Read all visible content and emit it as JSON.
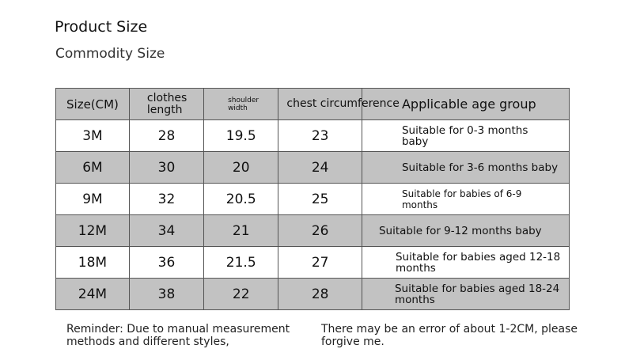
{
  "title": "Product Size",
  "subtitle": "Commodity Size",
  "table": {
    "headers": [
      "Size(CM)",
      "clothes length",
      "shoulder width",
      "chest circumference",
      "Applicable age group"
    ],
    "rows": [
      [
        "3M",
        "28",
        "19.5",
        "23",
        "Suitable for 0-3 months baby"
      ],
      [
        "6M",
        "30",
        "20",
        "24",
        "Suitable for 3-6 months baby"
      ],
      [
        "9M",
        "32",
        "20.5",
        "25",
        "Suitable for babies of 6-9 months"
      ],
      [
        "12M",
        "34",
        "21",
        "26",
        "Suitable for 9-12 months baby"
      ],
      [
        "18M",
        "36",
        "21.5",
        "27",
        "Suitable for babies aged 12-18 months"
      ],
      [
        "24M",
        "38",
        "22",
        "28",
        "Suitable for babies aged 18-24 months"
      ]
    ]
  },
  "notes": [
    "Reminder: Due to manual measurement methods and different styles,",
    "There may be an error of about 1-2CM, please forgive me."
  ],
  "colors": {
    "row_shade": "#c2c2c2",
    "border": "#555555"
  }
}
